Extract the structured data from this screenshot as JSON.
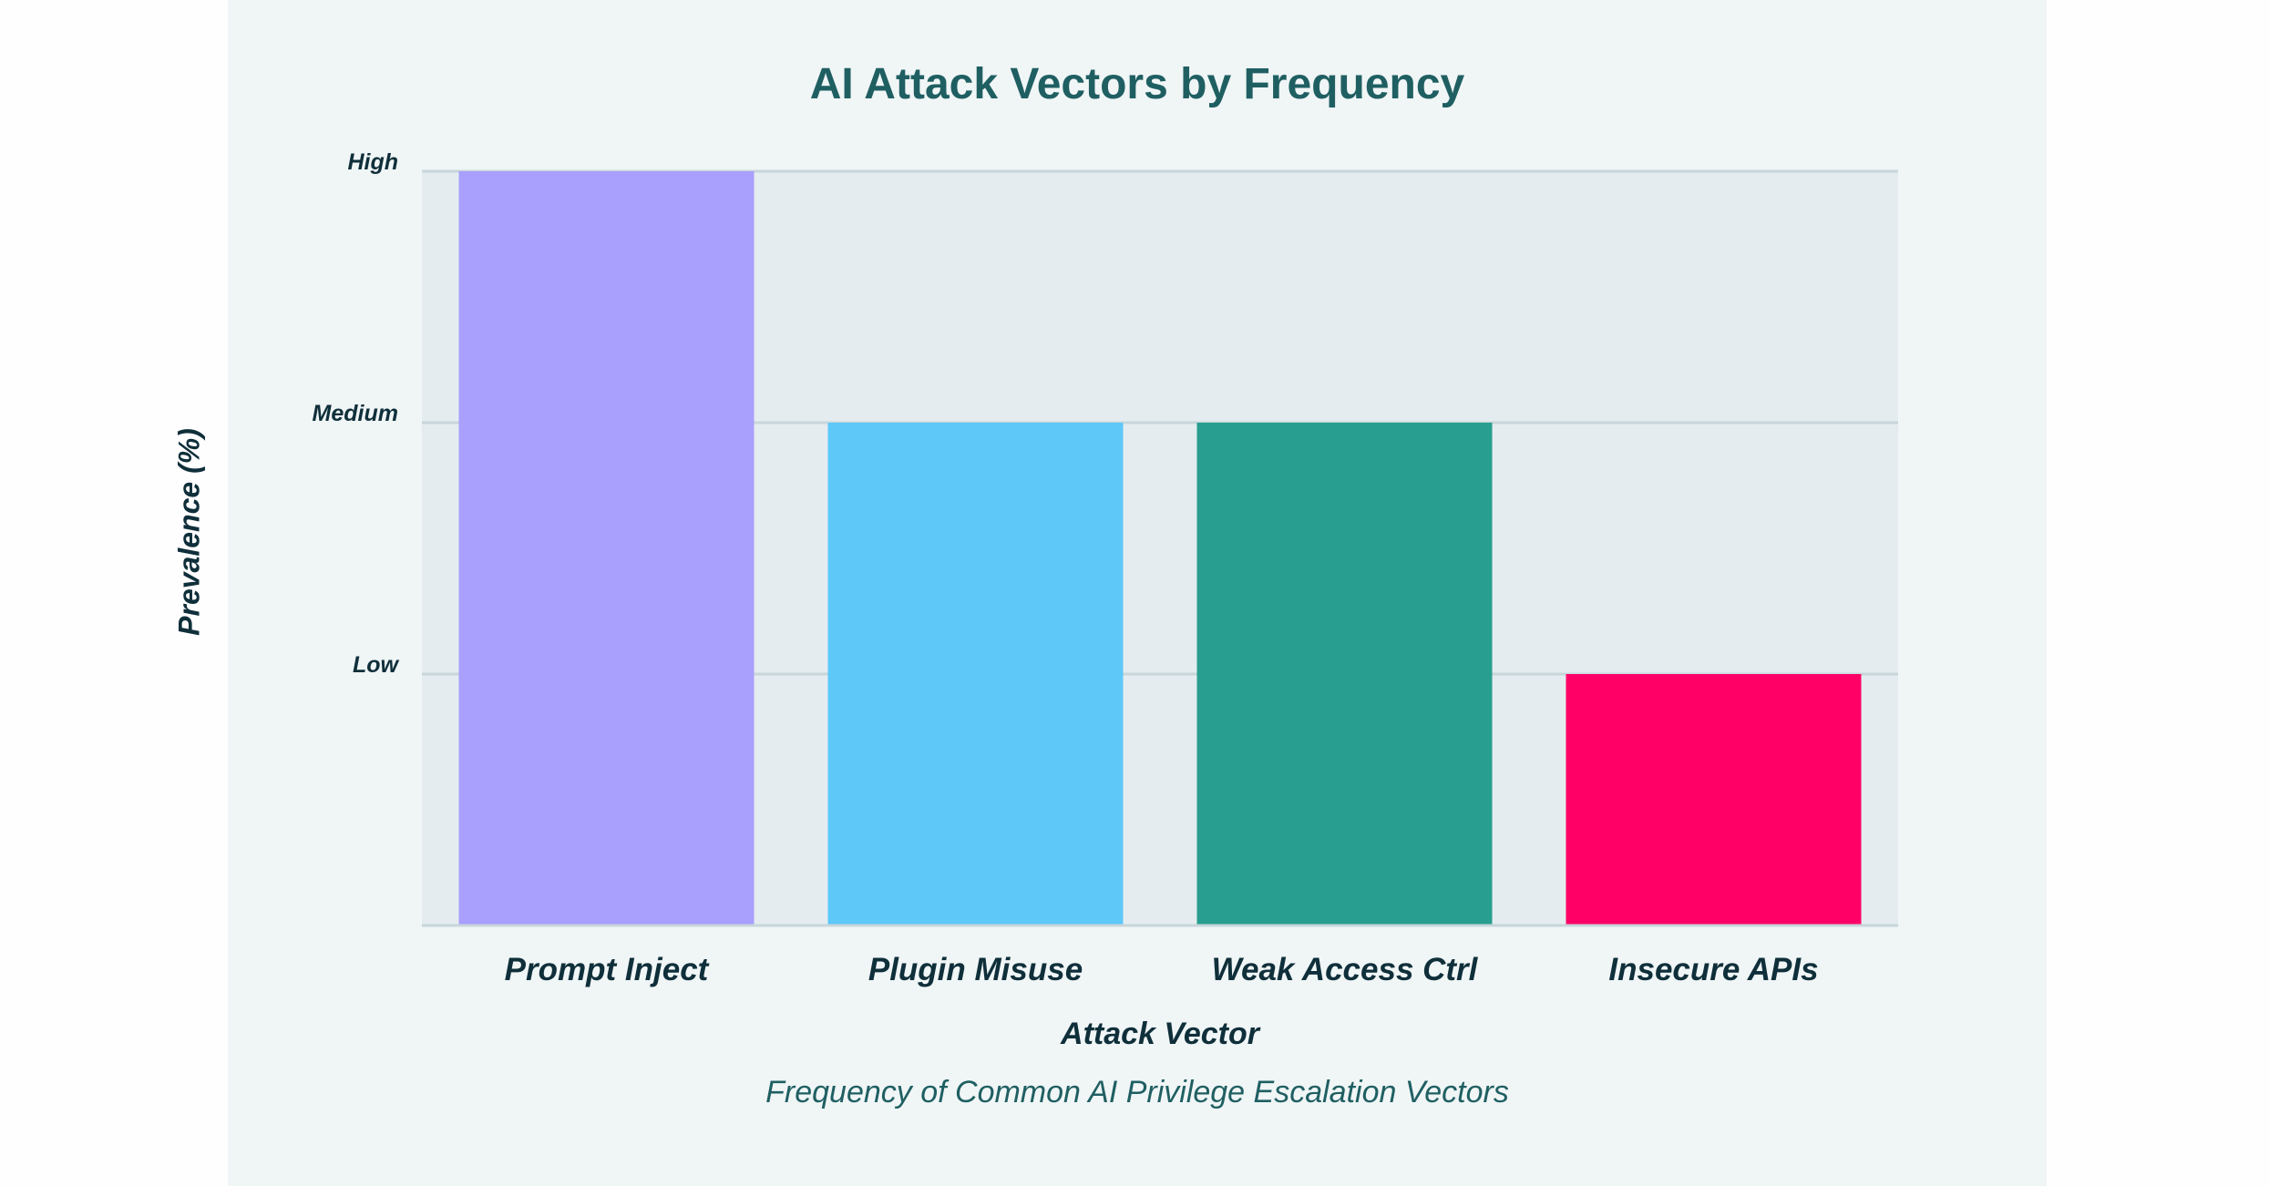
{
  "chart_data": {
    "type": "bar",
    "title": "AI Attack Vectors by Frequency",
    "subtitle": "Frequency of Common AI Privilege Escalation Vectors",
    "xlabel": "Attack Vector",
    "ylabel": "Prevalence (%)",
    "categories": [
      "Prompt Inject",
      "Plugin Misuse",
      "Weak Access Ctrl",
      "Insecure APIs"
    ],
    "values": [
      3,
      2,
      2,
      1
    ],
    "ylim": [
      0,
      3
    ],
    "yticks": [
      {
        "value": 1,
        "label": "Low"
      },
      {
        "value": 2,
        "label": "Medium"
      },
      {
        "value": 3,
        "label": "High"
      }
    ],
    "colors": [
      "#a99ffc",
      "#5ec8f9",
      "#279e8f",
      "#ff0066"
    ],
    "grid": true,
    "legend": "none"
  }
}
